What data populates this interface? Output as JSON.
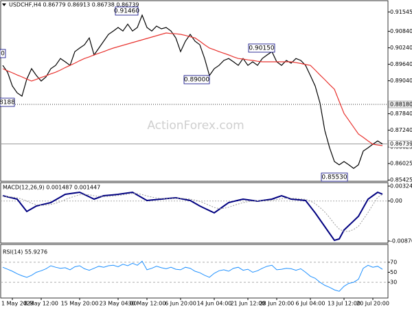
{
  "chart_data": [
    {
      "type": "line",
      "title": "USDCHF,H4  0.86779 0.86913 0.86738 0.86739",
      "watermark": "ActionForex.com",
      "ylim": [
        0.8538,
        0.9193
      ],
      "yticks": [
        0.91545,
        {
          "value": 0.9084,
          "label": "0.90840"
        },
        {
          "value": 0.9024,
          "label": "0.90240"
        },
        {
          "value": 0.8964,
          "label": "0.89640"
        },
        {
          "value": 0.8904,
          "label": "0.89040"
        },
        {
          "value": 0.8784,
          "label": "0.87840"
        },
        {
          "value": 0.8724,
          "label": "0.87240"
        },
        0.86625,
        0.86025,
        0.85425
      ],
      "hlines": [
        {
          "value": 0.8818,
          "label": "0.88180",
          "color": "#333"
        },
        {
          "value": 0.86739,
          "label": "0.86739",
          "color": "#999"
        }
      ],
      "annotations": [
        "0.91460",
        "0.89000",
        "0.90150",
        "0.85530",
        "8188",
        "0"
      ],
      "series": [
        {
          "color": "#000000",
          "values": [
            0.896,
            0.8935,
            0.8885,
            0.886,
            0.8848,
            0.891,
            0.8948,
            0.8923,
            0.8903,
            0.8918,
            0.8948,
            0.896,
            0.8985,
            0.8973,
            0.896,
            0.901,
            0.9023,
            0.9035,
            0.906,
            0.8998,
            0.9023,
            0.9048,
            0.9073,
            0.9085,
            0.9098,
            0.9085,
            0.911,
            0.9085,
            0.9098,
            0.9143,
            0.9098,
            0.9085,
            0.9103,
            0.9093,
            0.9098,
            0.9085,
            0.906,
            0.901,
            0.9048,
            0.9073,
            0.9048,
            0.9035,
            0.8985,
            0.8923,
            0.8948,
            0.896,
            0.8978,
            0.8985,
            0.8973,
            0.896,
            0.8985,
            0.896,
            0.8973,
            0.896,
            0.8985,
            0.8998,
            0.901,
            0.8973,
            0.896,
            0.8978,
            0.8968,
            0.8985,
            0.8978,
            0.896,
            0.8923,
            0.8885,
            0.8823,
            0.8723,
            0.866,
            0.861,
            0.8598,
            0.861,
            0.8598,
            0.8585,
            0.8598,
            0.8648,
            0.866,
            0.8673,
            0.8685,
            0.86739
          ]
        },
        {
          "color": "#e8322e",
          "values": [
            0.8948,
            0.894,
            0.8933,
            0.8925,
            0.8918,
            0.891,
            0.8903,
            0.8909,
            0.8916,
            0.8922,
            0.8929,
            0.8935,
            0.8943,
            0.8952,
            0.896,
            0.8968,
            0.8977,
            0.8985,
            0.8991,
            0.8998,
            0.9004,
            0.901,
            0.9017,
            0.9023,
            0.9028,
            0.9033,
            0.9038,
            0.9043,
            0.9048,
            0.9053,
            0.9058,
            0.9063,
            0.9068,
            0.9073,
            0.9078,
            0.9076,
            0.9075,
            0.9073,
            0.9069,
            0.9064,
            0.906,
            0.9048,
            0.9035,
            0.9023,
            0.9017,
            0.901,
            0.9004,
            0.8998,
            0.8991,
            0.8985,
            0.8983,
            0.898,
            0.8978,
            0.8975,
            0.8973,
            0.8973,
            0.8973,
            0.8973,
            0.8973,
            0.8973,
            0.8973,
            0.897,
            0.8967,
            0.8963,
            0.896,
            0.8943,
            0.8925,
            0.8908,
            0.889,
            0.8873,
            0.8829,
            0.8785,
            0.876,
            0.8735,
            0.871,
            0.8698,
            0.8685,
            0.8673,
            0.867,
            0.8668
          ]
        }
      ]
    },
    {
      "type": "line",
      "title": "MACD(12,26,9) 0.001487 0.001447",
      "ylim": [
        -0.00915,
        0.00399
      ],
      "yticks": [
        0.003242,
        {
          "value": 0,
          "label": "0.00"
        },
        -0.008703
      ],
      "zero_line": true,
      "series": [
        {
          "color": "#000080",
          "width": 2,
          "values": [
            0.00115,
            0.0009,
            0.00066,
            0.00041,
            -0.00094,
            -0.00228,
            -0.00169,
            -0.00109,
            -0.00084,
            -0.00059,
            -0.00034,
            0.00026,
            0.00086,
            0.00145,
            0.0016,
            0.00175,
            0.0019,
            0.0014,
            0.00091,
            0.00041,
            0.00078,
            0.00115,
            0.00125,
            0.00135,
            0.00145,
            0.0016,
            0.00175,
            0.0019,
            0.0013,
            0.00071,
            0.00011,
            0.00021,
            0.00031,
            0.00041,
            0.00051,
            0.00061,
            0.00071,
            0.00051,
            0.00031,
            0.00011,
            -0.00049,
            -0.00109,
            -0.00159,
            -0.00208,
            -0.00258,
            -0.00183,
            -0.00109,
            -0.00034,
            -9e-05,
            0.00016,
            0.00041,
            0.00026,
            0.00011,
            -4e-05,
            0.00011,
            0.00026,
            0.00041,
            0.00078,
            0.00115,
            0.00078,
            0.00041,
            0.00031,
            0.00021,
            0.00011,
            -0.00124,
            -0.00258,
            -0.00408,
            -0.00557,
            -0.00706,
            -0.00855,
            -0.00825,
            -0.00631,
            -0.00532,
            -0.00432,
            -0.00333,
            -0.00146,
            0.00041,
            0.00116,
            0.0019,
            0.001487
          ]
        },
        {
          "color": "#999999",
          "width": 1,
          "dash": true,
          "values": [
            0.001,
            0.00095,
            0.00085,
            0.0007,
            0.0004,
            0,
            -0.0005,
            -0.0008,
            -0.00095,
            -0.0009,
            -0.00075,
            -0.0005,
            -0.00015,
            0.0003,
            0.0007,
            0.00105,
            0.00135,
            0.00145,
            0.00135,
            0.00115,
            0.001,
            0.00095,
            0.001,
            0.0011,
            0.0012,
            0.00135,
            0.0015,
            0.00165,
            0.0016,
            0.0014,
            0.0011,
            0.00085,
            0.00065,
            0.00055,
            0.0005,
            0.00052,
            0.00057,
            0.00058,
            0.00052,
            0.0004,
            0.0002,
            -0.0001,
            -0.0005,
            -0.00095,
            -0.0014,
            -0.00165,
            -0.0016,
            -0.00135,
            -0.001,
            -0.00065,
            -0.00035,
            -0.00015,
            -2e-05,
            3e-05,
            6e-05,
            0.0001,
            0.00017,
            0.0003,
            0.0005,
            0.00062,
            0.00062,
            0.00055,
            0.00045,
            0.00035,
            0,
            -0.0006,
            -0.0014,
            -0.0024,
            -0.0036,
            -0.005,
            -0.0061,
            -0.0066,
            -0.0066,
            -0.0062,
            -0.0055,
            -0.004,
            -0.0025,
            -0.0008,
            0.0008,
            0.001447
          ]
        }
      ]
    },
    {
      "type": "line",
      "title": "RSI(14) 55.9276",
      "ylim": [
        0,
        100
      ],
      "yticks": [
        70,
        50,
        30
      ],
      "levels": [
        70,
        30
      ],
      "categories": [
        null,
        null,
        "1 May 2023",
        null,
        null,
        null,
        null,
        null,
        "8 May 12:00",
        null,
        null,
        null,
        null,
        null,
        null,
        null,
        "15 May 20:00",
        null,
        null,
        null,
        null,
        null,
        null,
        null,
        "23 May 04:00",
        null,
        null,
        null,
        null,
        null,
        "30 May 12:00",
        null,
        null,
        null,
        null,
        null,
        null,
        "6 Jun 20:00",
        null,
        null,
        null,
        null,
        null,
        null,
        "14 Jun 04:00",
        null,
        null,
        null,
        null,
        null,
        null,
        "21 Jun 12:00",
        null,
        null,
        null,
        null,
        null,
        "28 Jun 20:00",
        null,
        null,
        null,
        null,
        null,
        null,
        "6 Jul 04:00",
        null,
        null,
        null,
        null,
        null,
        null,
        "13 Jul 12:00",
        null,
        null,
        null,
        null,
        null,
        "20 Jul 20:00",
        null,
        null
      ],
      "series": [
        {
          "color": "#1e90ff",
          "width": 1,
          "values": [
            60,
            56,
            52,
            47,
            43,
            40,
            44,
            50,
            53,
            57,
            63,
            60,
            58,
            59,
            55,
            61,
            63,
            57,
            54,
            58,
            62,
            60,
            63,
            64,
            61,
            66,
            63,
            68,
            64,
            72,
            55,
            58,
            62,
            59,
            57,
            60,
            56,
            55,
            60,
            58,
            52,
            49,
            44,
            40,
            48,
            53,
            55,
            52,
            58,
            60,
            54,
            56,
            50,
            53,
            58,
            62,
            64,
            55,
            56,
            58,
            57,
            54,
            57,
            50,
            42,
            38,
            30,
            24,
            20,
            15,
            12,
            22,
            28,
            30,
            36,
            58,
            64,
            60,
            62,
            55.9276
          ]
        }
      ]
    }
  ]
}
